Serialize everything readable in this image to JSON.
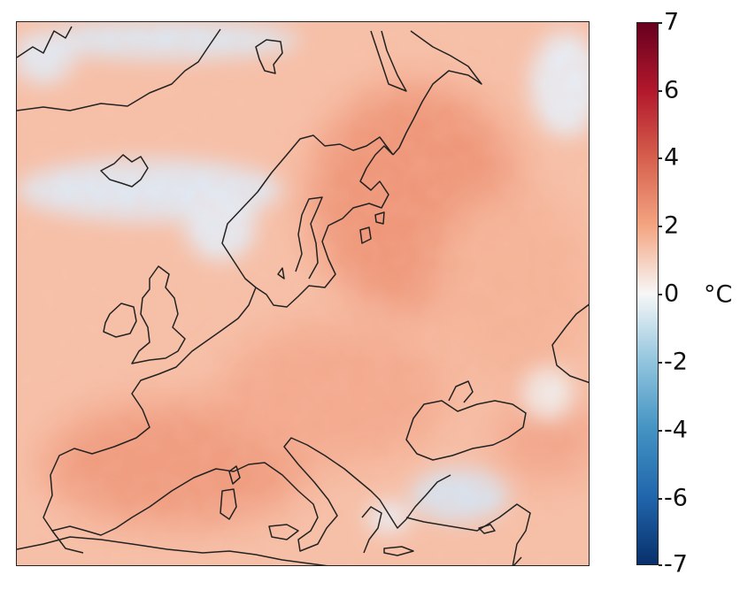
{
  "map": {
    "colorbar": {
      "unit": "°C",
      "min": -7,
      "max": 7,
      "ticks": [
        "7",
        "6",
        "4",
        "2",
        "0",
        "-2",
        "-4",
        "-6",
        "-7"
      ],
      "colors": [
        "#08306b",
        "#2166ac",
        "#4393c3",
        "#92c5de",
        "#f7f7f7",
        "#f4a582",
        "#d6604d",
        "#b2182b",
        "#67001f"
      ]
    }
  }
}
